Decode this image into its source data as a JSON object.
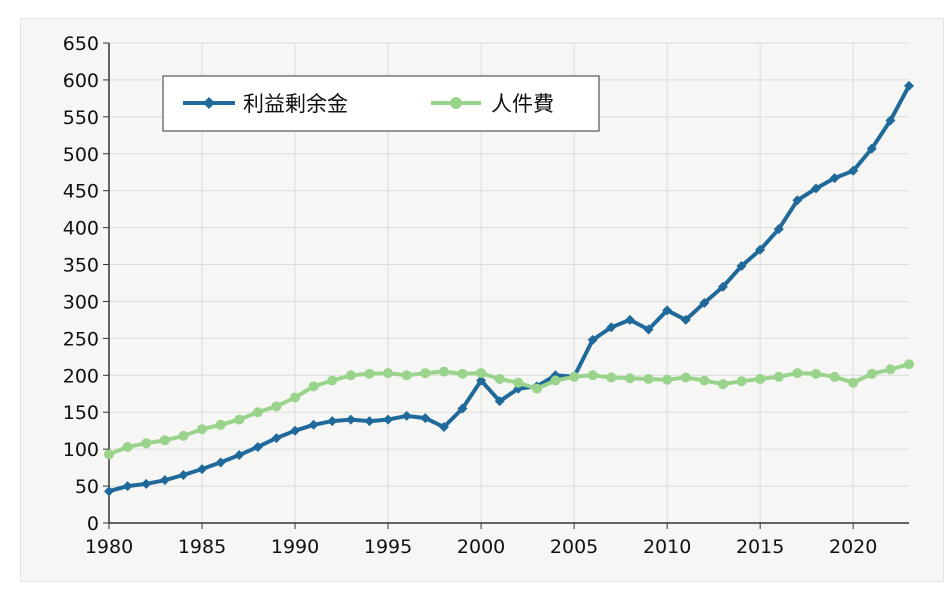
{
  "chart_data": {
    "type": "line",
    "title": "",
    "xlabel": "",
    "ylabel": "",
    "xlim": [
      1980,
      2023
    ],
    "ylim": [
      0,
      650
    ],
    "x_ticks": [
      1980,
      1985,
      1990,
      1995,
      2000,
      2005,
      2010,
      2015,
      2020
    ],
    "y_ticks": [
      0,
      50,
      100,
      150,
      200,
      250,
      300,
      350,
      400,
      450,
      500,
      550,
      600,
      650
    ],
    "grid": true,
    "legend_position": "top-left",
    "x": [
      1980,
      1981,
      1982,
      1983,
      1984,
      1985,
      1986,
      1987,
      1988,
      1989,
      1990,
      1991,
      1992,
      1993,
      1994,
      1995,
      1996,
      1997,
      1998,
      1999,
      2000,
      2001,
      2002,
      2003,
      2004,
      2005,
      2006,
      2007,
      2008,
      2009,
      2010,
      2011,
      2012,
      2013,
      2014,
      2015,
      2016,
      2017,
      2018,
      2019,
      2020,
      2021,
      2022,
      2023
    ],
    "series": [
      {
        "name": "利益剰余金",
        "color": "#1f6a9a",
        "marker": "diamond",
        "values": [
          43,
          50,
          53,
          58,
          65,
          73,
          82,
          92,
          103,
          115,
          125,
          133,
          138,
          140,
          138,
          140,
          145,
          142,
          130,
          155,
          193,
          165,
          182,
          185,
          200,
          198,
          248,
          265,
          275,
          262,
          288,
          275,
          298,
          320,
          348,
          370,
          398,
          437,
          453,
          467,
          477,
          507,
          545,
          592
        ]
      },
      {
        "name": "人件費",
        "color": "#9ad48c",
        "marker": "circle",
        "values": [
          93,
          103,
          108,
          112,
          118,
          127,
          133,
          140,
          150,
          158,
          170,
          185,
          193,
          200,
          202,
          203,
          200,
          203,
          205,
          202,
          203,
          195,
          190,
          182,
          193,
          198,
          200,
          197,
          196,
          195,
          194,
          197,
          193,
          188,
          192,
          195,
          198,
          203,
          202,
          198,
          190,
          202,
          208,
          215
        ]
      }
    ]
  }
}
